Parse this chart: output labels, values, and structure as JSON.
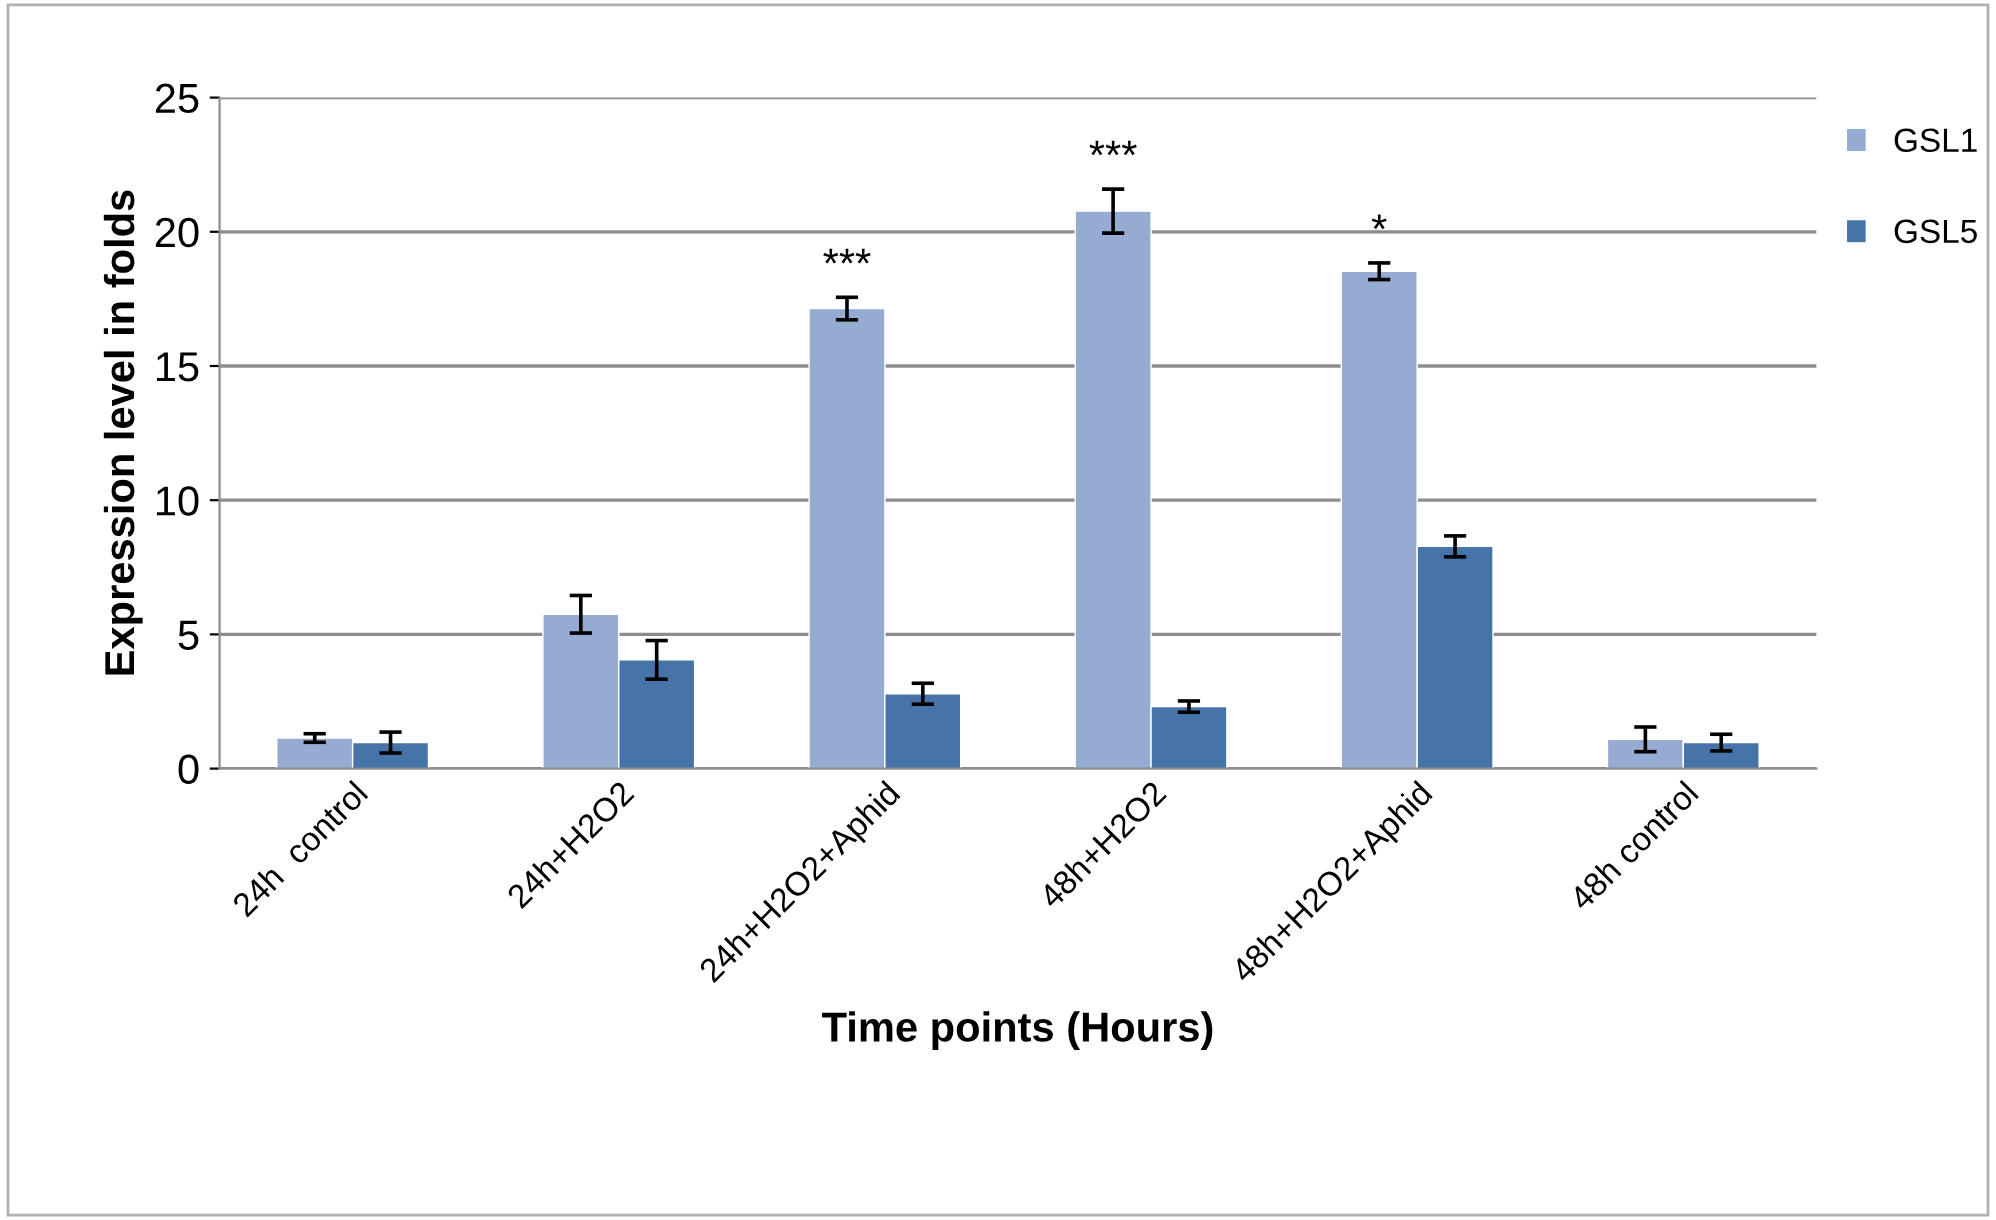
{
  "chart_data": {
    "type": "bar",
    "xlabel": "Time points (Hours)",
    "ylabel": "Expression level in folds",
    "categories": [
      "24h  control",
      "24h+H2O2",
      "24h+H2O2+Aphid",
      "48h+H2O2",
      "48h+H2O2+Aphid",
      "48h control"
    ],
    "series": [
      {
        "name": "GSL1",
        "color": "#95abd1",
        "values": [
          1.14,
          5.75,
          17.14,
          20.77,
          18.53,
          1.09
        ],
        "errors": [
          0.16,
          0.7,
          0.42,
          0.82,
          0.31,
          0.46
        ]
      },
      {
        "name": "GSL5",
        "color": "#4674a8",
        "values": [
          0.97,
          4.05,
          2.79,
          2.31,
          8.28,
          0.97
        ],
        "errors": [
          0.39,
          0.72,
          0.39,
          0.21,
          0.39,
          0.31
        ]
      }
    ],
    "annotations": [
      {
        "text": "***",
        "x": "24h+H2O2+Aphid",
        "y": 17.14
      },
      {
        "text": "***",
        "x": "48h+H2O2",
        "y": 20.77
      },
      {
        "text": "*",
        "x": "48h+H2O2+Aphid",
        "y": 18.53
      }
    ],
    "ylim": [
      0,
      25
    ],
    "yticks": [
      0,
      5,
      10,
      15,
      20,
      25
    ],
    "grid": "y",
    "legend": "top right"
  }
}
